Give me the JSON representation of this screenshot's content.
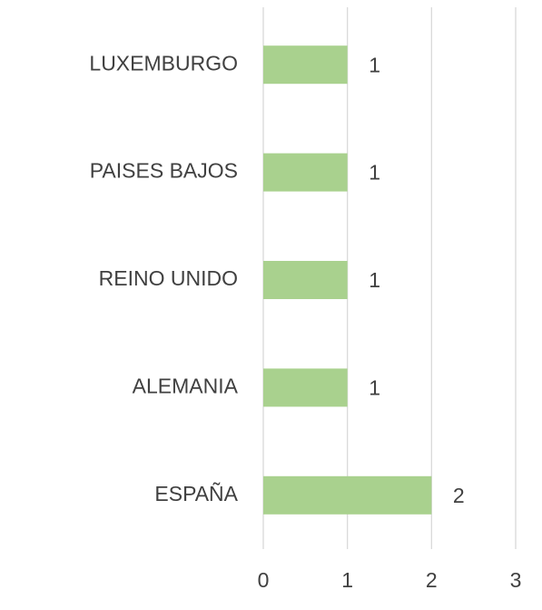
{
  "chart_data": {
    "type": "hbar",
    "categories": [
      "LUXEMBURGO",
      "PAISES BAJOS",
      "REINO UNIDO",
      "ALEMANIA",
      "ESPAÑA"
    ],
    "values": [
      1,
      1,
      1,
      1,
      2
    ],
    "color": "#a9d18e",
    "xlim": [
      0,
      3
    ],
    "xticks": [
      0,
      1,
      2,
      3
    ],
    "grid": true,
    "data_labels": true
  }
}
